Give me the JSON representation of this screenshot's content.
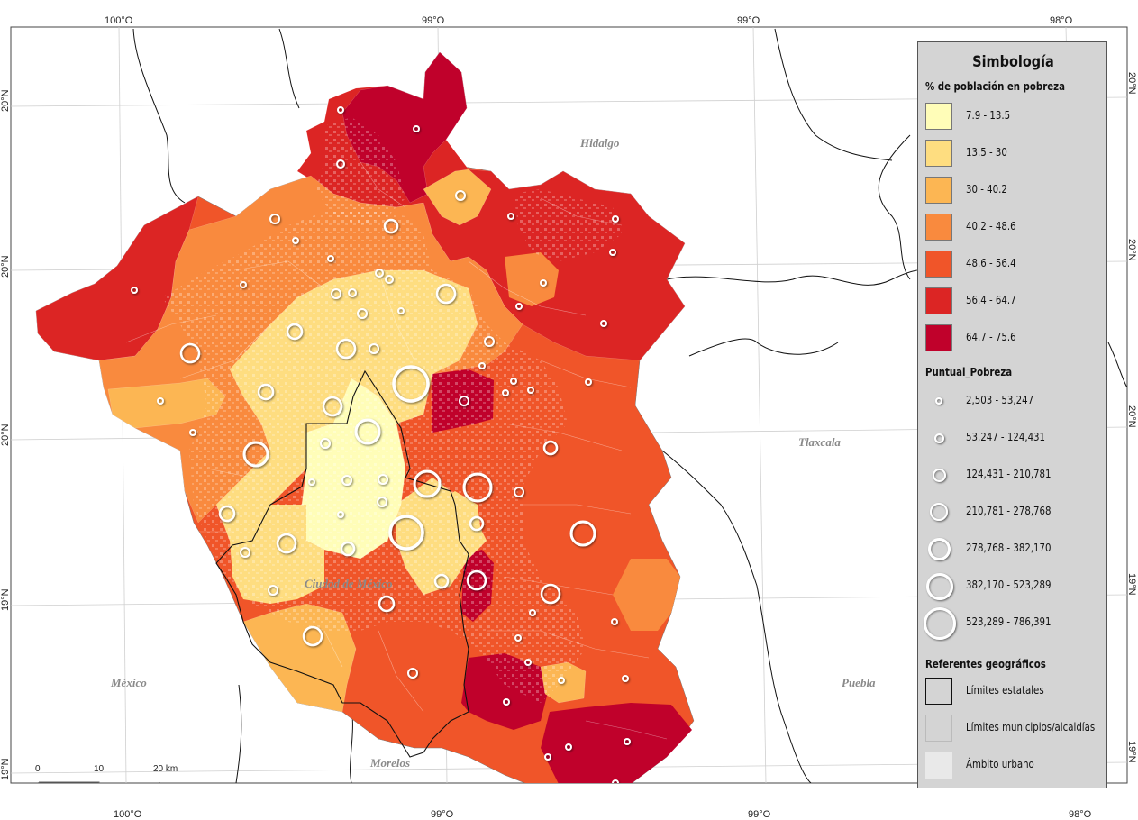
{
  "colors": {
    "classes": [
      "#fffdb8",
      "#fedd80",
      "#fcb653",
      "#f98a3e",
      "#f05529",
      "#dc2524",
      "#c0012b"
    ],
    "urban": "#e9e9e9",
    "muni_border": "#c8c8c8",
    "legend_bg": "#d4d4d4"
  },
  "graticule": {
    "top_labels": [
      "100°O",
      "99°O",
      "99°O",
      "98°O"
    ],
    "bottom_labels": [
      "100°O",
      "99°O",
      "99°O",
      "98°O"
    ],
    "left_labels": [
      "20°N",
      "20°N",
      "20°N",
      "19°N",
      "19°N"
    ],
    "right_labels": [
      "20°N",
      "20°N",
      "20°N",
      "19°N",
      "19°N"
    ]
  },
  "state_labels": {
    "hidalgo": "Hidalgo",
    "tlaxcala": "Tlaxcala",
    "mexico": "México",
    "puebla": "Puebla",
    "morelos": "Morelos",
    "cdmx": "Ciudad de México"
  },
  "scale_bar": {
    "labels": [
      "0",
      "10",
      "20 km"
    ]
  },
  "legend": {
    "title": "Simbología",
    "choropleth_title": "% de población en pobreza",
    "classes": [
      {
        "label": "7.9 - 13.5",
        "min": 7.9,
        "max": 13.5
      },
      {
        "label": "13.5 - 30",
        "min": 13.5,
        "max": 30
      },
      {
        "label": "30 - 40.2",
        "min": 30,
        "max": 40.2
      },
      {
        "label": "40.2 - 48.6",
        "min": 40.2,
        "max": 48.6
      },
      {
        "label": "48.6 - 56.4",
        "min": 48.6,
        "max": 56.4
      },
      {
        "label": "56.4 - 64.7",
        "min": 56.4,
        "max": 64.7
      },
      {
        "label": "64.7 - 75.6",
        "min": 64.7,
        "max": 75.6
      }
    ],
    "points_title": "Puntual_Pobreza",
    "points": [
      {
        "label": "2,503 - 53,247"
      },
      {
        "label": "53,247 - 124,431"
      },
      {
        "label": "124,431 - 210,781"
      },
      {
        "label": "210,781 - 278,768"
      },
      {
        "label": "278,768 - 382,170"
      },
      {
        "label": "382,170 - 523,289"
      },
      {
        "label": "523,289 - 786,391"
      }
    ],
    "refs_title": "Referentes geográficos",
    "refs": [
      {
        "label": "Límites estatales"
      },
      {
        "label": "Límites municipios/alcaldías"
      },
      {
        "label": "Ámbito urbano"
      }
    ]
  }
}
